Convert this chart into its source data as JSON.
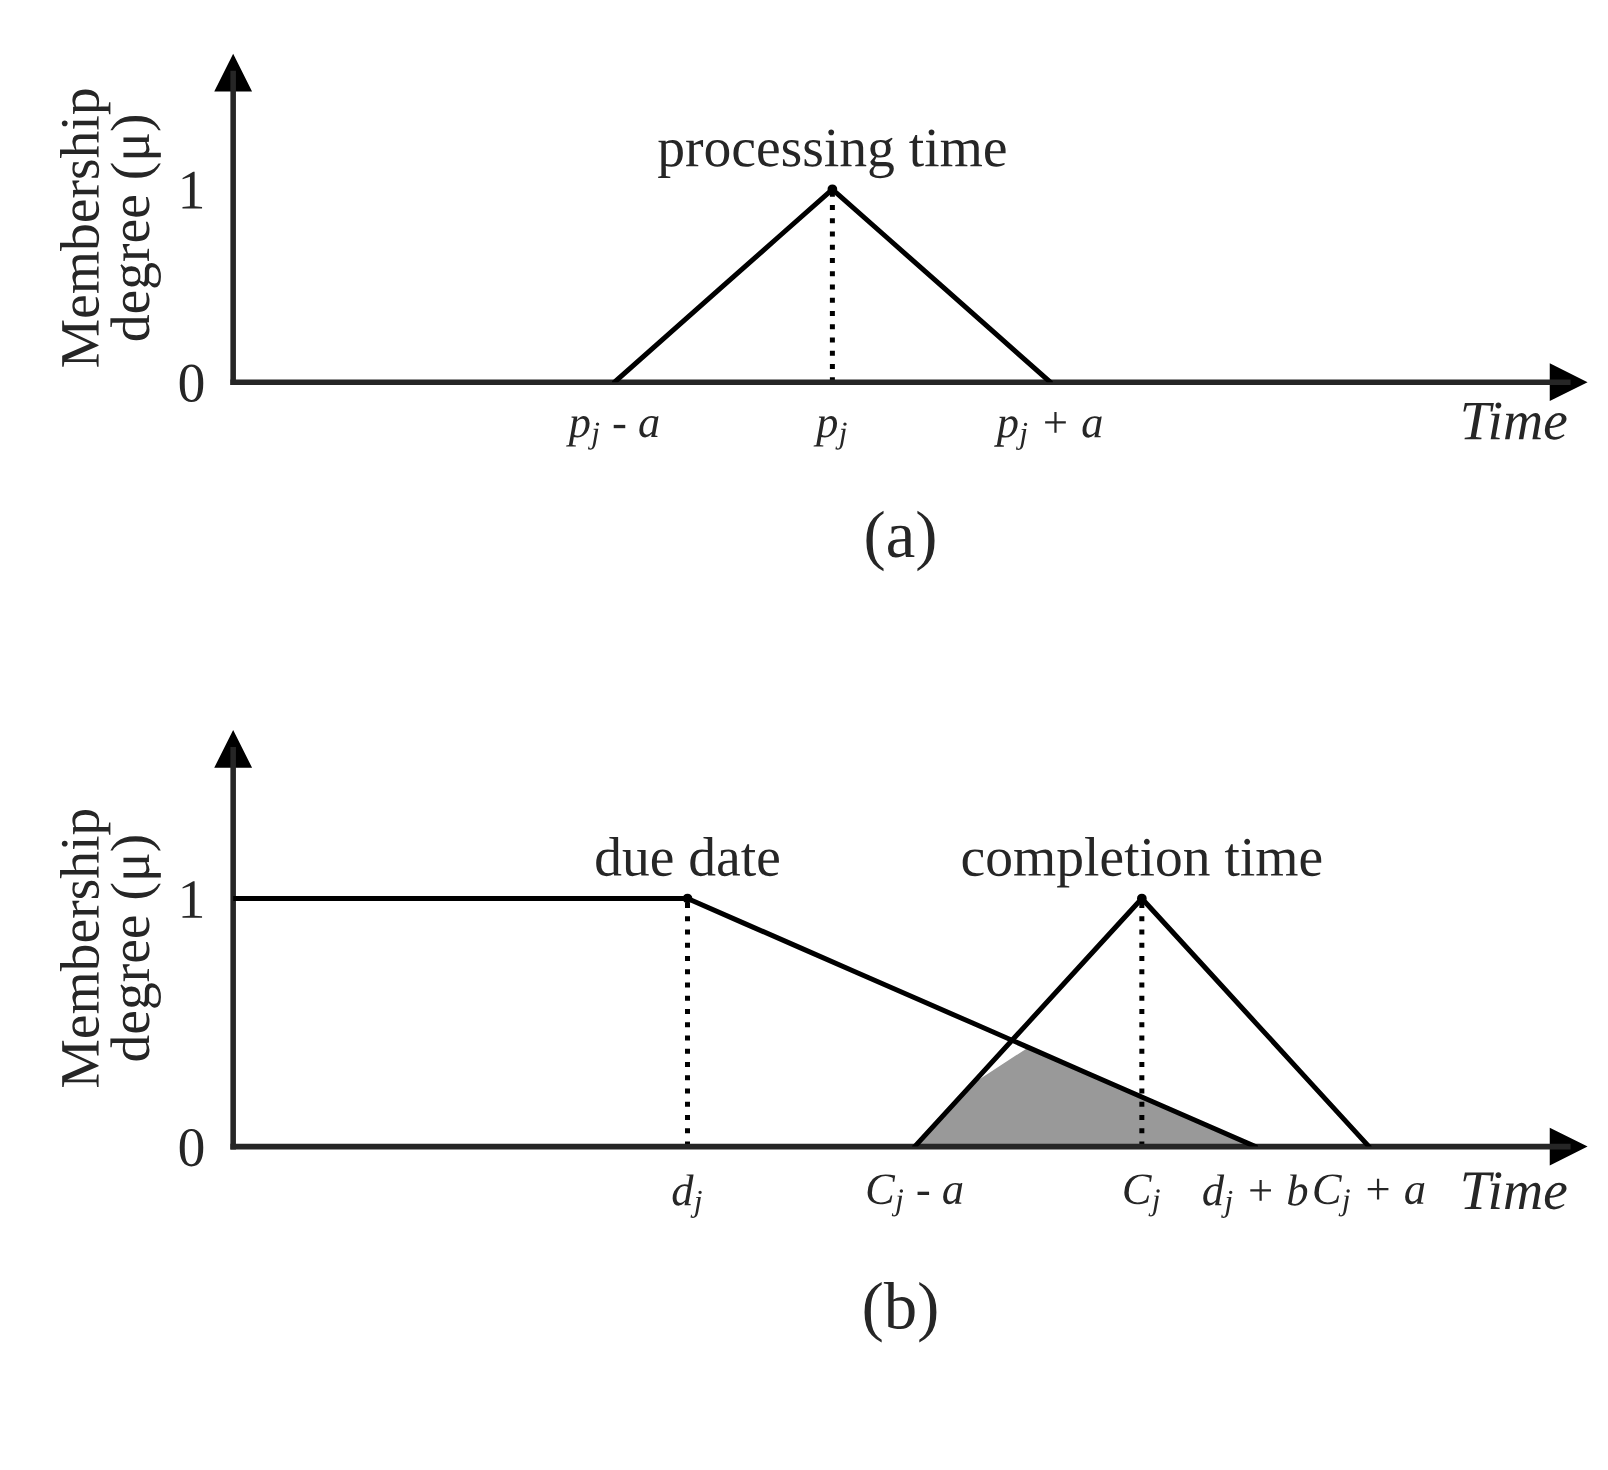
{
  "chart_data": [
    {
      "type": "line",
      "title": "(a)",
      "xlabel": "Time",
      "ylabel": "Membership\ndegree (μ)",
      "ylim": [
        0,
        1.6
      ],
      "yticks": [
        0,
        1
      ],
      "categories": [
        null,
        null,
        null,
        null,
        null,
        null,
        null,
        "p$_{j}$ - a",
        null,
        null,
        null,
        "p$_{j}$",
        null,
        null,
        null,
        "p$_{j}$ + a",
        null,
        null,
        null,
        null,
        null,
        null,
        null,
        null,
        null
      ],
      "series": [
        {
          "type": "line",
          "color": "#000000",
          "line_style": "solid",
          "values": [
            null,
            null,
            null,
            null,
            null,
            null,
            null,
            0,
            0.25,
            0.5,
            0.75,
            1,
            0.75,
            0.5,
            0.25,
            0,
            null,
            null,
            null,
            null,
            null,
            null,
            null,
            null,
            null
          ]
        },
        {
          "type": "lollipop",
          "color": "#000000",
          "line_style": "dotted",
          "marker": "none",
          "values": [
            null,
            null,
            null,
            null,
            null,
            null,
            null,
            null,
            null,
            null,
            null,
            1,
            null,
            null,
            null,
            null,
            null,
            null,
            null,
            null,
            null,
            null,
            null,
            null,
            null
          ]
        }
      ],
      "annotations": [
        {
          "text": "processing time",
          "x": "p$_{j}$",
          "y": 1
        }
      ]
    },
    {
      "type": "line",
      "title": "(b)",
      "xlabel": "Time",
      "ylabel": "Membership\ndegree (μ)",
      "ylim": [
        0,
        1.6
      ],
      "yticks": [
        0,
        1
      ],
      "categories": [
        null,
        null,
        null,
        null,
        null,
        null,
        null,
        null,
        "d$_{j}$",
        null,
        null,
        null,
        "C$_{j}$ - a",
        null,
        null,
        null,
        "C$_{j}$",
        null,
        "d$_{j}$ + b",
        null,
        "C$_{j}$ + a",
        null,
        null,
        null
      ],
      "series": [
        {
          "type": "area",
          "color": "#999999",
          "values": [
            null,
            null,
            null,
            null,
            null,
            null,
            null,
            null,
            null,
            null,
            null,
            null,
            0,
            0.25,
            0.4,
            0.3,
            0.2,
            0.1,
            0,
            null,
            null,
            null,
            null,
            null
          ]
        },
        {
          "type": "line",
          "color": "#000000",
          "line_style": "solid",
          "values": [
            1,
            1,
            1,
            1,
            1,
            1,
            1,
            1,
            1,
            0.9,
            0.8,
            0.7,
            0.6,
            0.5,
            0.4,
            0.3,
            0.2,
            0.1,
            0,
            null,
            null,
            null,
            null,
            null
          ]
        },
        {
          "type": "line",
          "color": "#000000",
          "line_style": "solid",
          "values": [
            null,
            null,
            null,
            null,
            null,
            null,
            null,
            null,
            null,
            null,
            null,
            null,
            0,
            0.25,
            0.5,
            0.75,
            1,
            0.75,
            0.5,
            0.25,
            0,
            null,
            null,
            null
          ]
        },
        {
          "type": "lollipop",
          "color": "#000000",
          "line_style": "dotted",
          "marker": "none",
          "values": [
            null,
            null,
            null,
            null,
            null,
            null,
            null,
            null,
            1,
            null,
            null,
            null,
            null,
            null,
            null,
            null,
            1,
            null,
            null,
            null,
            null,
            null,
            null,
            null
          ]
        }
      ],
      "annotations": [
        {
          "text": "due date",
          "x": "d$_{j}$",
          "y": 1
        },
        {
          "text": "completion time",
          "x": "C$_{j}$",
          "y": 1
        }
      ]
    }
  ]
}
